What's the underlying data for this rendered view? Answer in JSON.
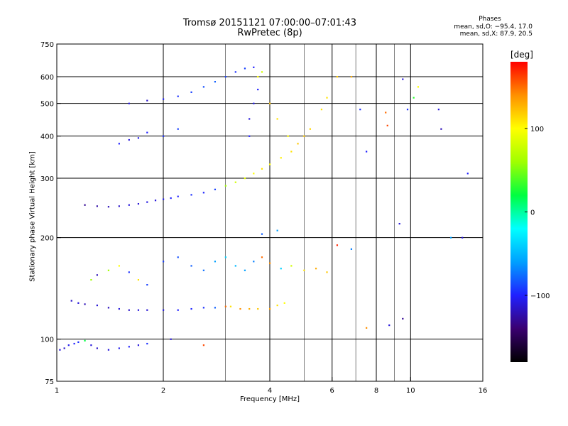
{
  "header": {
    "title": "Tromsø 20151121 07:00:00–07:01:43",
    "subtitle": "RwPretec (8p)",
    "stats_title": "Phases",
    "stats_o": "mean, sd,O: −95.4, 17.0",
    "stats_x": "mean, sd,X:  87.9, 20.5"
  },
  "chart_data": {
    "type": "scatter",
    "xlabel": "Frequency [MHz]",
    "ylabel": "Stationary phase Virtual Height [km]",
    "xscale": "log",
    "yscale": "log",
    "xlim": [
      1,
      16
    ],
    "ylim": [
      75,
      750
    ],
    "xticks": [
      "1",
      "2",
      "4",
      "6",
      "8",
      "10",
      "16"
    ],
    "xtick_values": [
      1,
      2,
      4,
      6,
      8,
      10,
      16
    ],
    "yticks": [
      "75",
      "100",
      "200",
      "300",
      "400",
      "500",
      "600",
      "750"
    ],
    "ytick_values": [
      75,
      100,
      200,
      300,
      400,
      500,
      600,
      750
    ],
    "xgrid_values": [
      2,
      4,
      6,
      8,
      10
    ],
    "ygrid_values": [
      100,
      200,
      300,
      400,
      500,
      600
    ],
    "xminor_values": [
      3,
      5,
      7,
      9
    ],
    "grid": true,
    "colorbar": {
      "label": "[deg]",
      "range": [
        -180,
        180
      ],
      "ticks": [
        "100",
        "0",
        "−100"
      ],
      "tick_values": [
        100,
        0,
        -100
      ],
      "colors": [
        "#000000",
        "#3a0070",
        "#2020ff",
        "#00a0ff",
        "#00ffff",
        "#00ff40",
        "#a0ff00",
        "#ffff00",
        "#ff9000",
        "#ff0000"
      ]
    },
    "color_scale": "phase (deg) mapped via colorbar",
    "series": [
      {
        "points": [
          [
            1.02,
            93,
            -110
          ],
          [
            1.05,
            94,
            -115
          ],
          [
            1.08,
            96,
            -105
          ],
          [
            1.12,
            97,
            -100
          ],
          [
            1.15,
            98,
            -95
          ],
          [
            1.2,
            99,
            20
          ],
          [
            1.25,
            96,
            -110
          ],
          [
            1.3,
            94,
            -115
          ],
          [
            1.4,
            93,
            -110
          ],
          [
            1.5,
            94,
            -105
          ],
          [
            1.6,
            95,
            -100
          ],
          [
            1.7,
            96,
            -110
          ],
          [
            1.8,
            97,
            -95
          ],
          [
            1.1,
            130,
            -115
          ],
          [
            1.15,
            128,
            -110
          ],
          [
            1.2,
            127,
            -120
          ],
          [
            1.3,
            126,
            -112
          ],
          [
            1.4,
            124,
            -118
          ],
          [
            1.5,
            123,
            -110
          ],
          [
            1.6,
            122,
            -115
          ],
          [
            1.7,
            122,
            -110
          ],
          [
            1.8,
            122,
            -112
          ],
          [
            2.0,
            122,
            -108
          ],
          [
            2.2,
            122,
            -100
          ],
          [
            2.4,
            123,
            -98
          ],
          [
            2.6,
            124,
            -95
          ],
          [
            2.8,
            124,
            -80
          ],
          [
            3.0,
            125,
            150
          ],
          [
            3.1,
            125,
            110
          ],
          [
            3.3,
            123,
            140
          ],
          [
            3.5,
            123,
            130
          ],
          [
            3.7,
            123,
            120
          ],
          [
            4.0,
            123,
            135
          ],
          [
            4.2,
            126,
            110
          ],
          [
            4.4,
            128,
            100
          ],
          [
            1.25,
            150,
            60
          ],
          [
            1.3,
            155,
            -120
          ],
          [
            1.4,
            160,
            60
          ],
          [
            1.5,
            165,
            100
          ],
          [
            1.6,
            158,
            -95
          ],
          [
            1.7,
            150,
            110
          ],
          [
            1.8,
            145,
            -90
          ],
          [
            2.0,
            170,
            -90
          ],
          [
            2.2,
            175,
            -85
          ],
          [
            2.4,
            165,
            -80
          ],
          [
            2.6,
            160,
            -75
          ],
          [
            2.8,
            170,
            -60
          ],
          [
            3.0,
            175,
            -40
          ],
          [
            3.2,
            165,
            -50
          ],
          [
            3.4,
            160,
            -60
          ],
          [
            3.6,
            170,
            -70
          ],
          [
            3.8,
            175,
            150
          ],
          [
            4.0,
            168,
            140
          ],
          [
            4.3,
            162,
            -40
          ],
          [
            4.6,
            165,
            80
          ],
          [
            5.0,
            160,
            110
          ],
          [
            5.4,
            162,
            130
          ],
          [
            5.8,
            158,
            120
          ],
          [
            1.2,
            250,
            -130
          ],
          [
            1.3,
            248,
            -125
          ],
          [
            1.4,
            247,
            -120
          ],
          [
            1.5,
            248,
            -115
          ],
          [
            1.6,
            250,
            -110
          ],
          [
            1.7,
            252,
            -112
          ],
          [
            1.8,
            255,
            -108
          ],
          [
            1.9,
            258,
            -110
          ],
          [
            2.0,
            260,
            -105
          ],
          [
            2.1,
            262,
            -100
          ],
          [
            2.2,
            265,
            -100
          ],
          [
            2.4,
            268,
            -95
          ],
          [
            2.6,
            272,
            -98
          ],
          [
            2.8,
            278,
            -90
          ],
          [
            3.0,
            285,
            60
          ],
          [
            3.2,
            292,
            80
          ],
          [
            3.4,
            300,
            90
          ],
          [
            3.6,
            310,
            100
          ],
          [
            3.8,
            320,
            110
          ],
          [
            4.0,
            330,
            100
          ],
          [
            4.3,
            345,
            105
          ],
          [
            4.6,
            360,
            110
          ],
          [
            5.0,
            400,
            120
          ],
          [
            1.5,
            380,
            -100
          ],
          [
            1.6,
            390,
            -110
          ],
          [
            1.7,
            395,
            -105
          ],
          [
            1.8,
            410,
            -100
          ],
          [
            2.0,
            400,
            -95
          ],
          [
            2.2,
            420,
            -90
          ],
          [
            1.6,
            500,
            -110
          ],
          [
            1.8,
            510,
            -115
          ],
          [
            2.0,
            515,
            -100
          ],
          [
            2.2,
            525,
            -95
          ],
          [
            2.4,
            540,
            -90
          ],
          [
            2.6,
            560,
            -85
          ],
          [
            2.8,
            580,
            -80
          ],
          [
            3.0,
            600,
            -90
          ],
          [
            3.2,
            620,
            -95
          ],
          [
            3.4,
            635,
            -90
          ],
          [
            3.6,
            640,
            -100
          ],
          [
            3.5,
            400,
            -100
          ],
          [
            3.5,
            450,
            -110
          ],
          [
            3.6,
            500,
            -105
          ],
          [
            3.7,
            550,
            -100
          ],
          [
            3.7,
            600,
            100
          ],
          [
            3.8,
            620,
            80
          ],
          [
            4.0,
            500,
            120
          ],
          [
            4.2,
            450,
            110
          ],
          [
            4.5,
            400,
            100
          ],
          [
            4.8,
            380,
            120
          ],
          [
            5.2,
            420,
            115
          ],
          [
            5.6,
            480,
            110
          ],
          [
            5.8,
            520,
            110
          ],
          [
            6.2,
            600,
            120
          ],
          [
            6.8,
            600,
            130
          ],
          [
            7.2,
            480,
            -95
          ],
          [
            7.5,
            360,
            -100
          ],
          [
            8.5,
            470,
            150
          ],
          [
            8.6,
            430,
            160
          ],
          [
            9.5,
            590,
            -110
          ],
          [
            9.8,
            480,
            -95
          ],
          [
            10.2,
            520,
            30
          ],
          [
            10.5,
            560,
            100
          ],
          [
            12.0,
            480,
            -110
          ],
          [
            12.2,
            420,
            -120
          ],
          [
            14.5,
            310,
            -100
          ],
          [
            14.0,
            200,
            -110
          ],
          [
            13.0,
            200,
            -60
          ],
          [
            9.3,
            220,
            -110
          ],
          [
            8.7,
            110,
            -110
          ],
          [
            7.5,
            108,
            140
          ],
          [
            9.5,
            115,
            -130
          ],
          [
            6.2,
            190,
            170
          ],
          [
            6.8,
            185,
            -70
          ],
          [
            4.2,
            210,
            -60
          ],
          [
            3.8,
            205,
            -80
          ],
          [
            2.6,
            96,
            160
          ],
          [
            2.1,
            100,
            -110
          ]
        ]
      }
    ]
  }
}
